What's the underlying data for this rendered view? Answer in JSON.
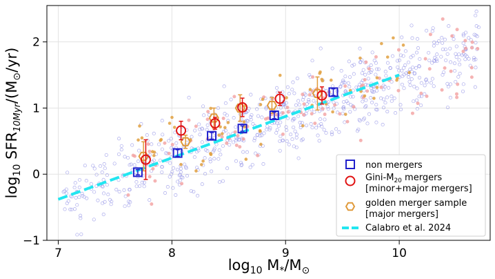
{
  "chart_data": {
    "type": "scatter",
    "title": "",
    "xlabel": {
      "base": "log",
      "sub": "10",
      "text": " M",
      "star": "*",
      "slash": "/M",
      "odot": "⊙"
    },
    "ylabel": {
      "base": "log",
      "sub": "10",
      "text": " SFR",
      "sfrsub": "10Myr",
      "tail": "/(M",
      "odot": "⊙",
      "end": "/yr)"
    },
    "xlim": [
      6.9,
      10.8
    ],
    "ylim": [
      -1.0,
      2.55
    ],
    "xticks": [
      "7",
      "8",
      "9",
      "10"
    ],
    "xtick_values": [
      7,
      8,
      9,
      10
    ],
    "yticks": [
      "−1",
      "0",
      "1",
      "2"
    ],
    "ytick_values": [
      -1,
      0,
      1,
      2
    ],
    "grid": true,
    "legend_position": "lower-right",
    "colors": {
      "non_mergers": "#1f1fcc",
      "gini": "#e01010",
      "golden": "#e09a3a",
      "calabro": "#22e6f0",
      "background_blue": "#8f8fe6",
      "background_pink": "#f2a0a0",
      "background_orange": "#e0a040"
    },
    "legend": [
      {
        "label": "non mergers",
        "marker": "square",
        "color": "#1f1fcc"
      },
      {
        "label": "Gini-M",
        "sub": "20",
        "label_rest": " mergers",
        "label2": "[minor+major mergers]",
        "marker": "circle",
        "color": "#e01010"
      },
      {
        "label": "golden merger sample",
        "label2": "[major mergers]",
        "marker": "hexagon",
        "color": "#e09a3a"
      },
      {
        "label": "Calabro et al. 2024",
        "marker": "dash",
        "color": "#22e6f0"
      }
    ],
    "calabro_line": {
      "x": [
        7.0,
        10.0
      ],
      "y": [
        -0.38,
        1.5
      ]
    },
    "non_mergers": {
      "x": [
        7.7,
        8.05,
        8.35,
        8.62,
        8.9,
        9.42
      ],
      "y": [
        0.03,
        0.32,
        0.58,
        0.69,
        0.89,
        1.24
      ],
      "yerr": [
        0.04,
        0.05,
        0.05,
        0.04,
        0.05,
        0.05
      ]
    },
    "gini_mergers": {
      "x": [
        7.77,
        8.08,
        8.38,
        8.62,
        8.95,
        9.32
      ],
      "y": [
        0.22,
        0.66,
        0.77,
        1.01,
        1.14,
        1.19
      ],
      "yerr": [
        0.3,
        0.14,
        0.09,
        0.14,
        0.1,
        0.13
      ]
    },
    "golden_mergers": {
      "x": [
        7.75,
        8.12,
        8.37,
        8.6,
        8.88,
        9.28
      ],
      "y": [
        0.27,
        0.49,
        0.85,
        1.0,
        1.04,
        1.22
      ],
      "yerr": [
        0.22,
        0.1,
        0.15,
        0.2,
        0.12,
        0.25
      ]
    }
  }
}
